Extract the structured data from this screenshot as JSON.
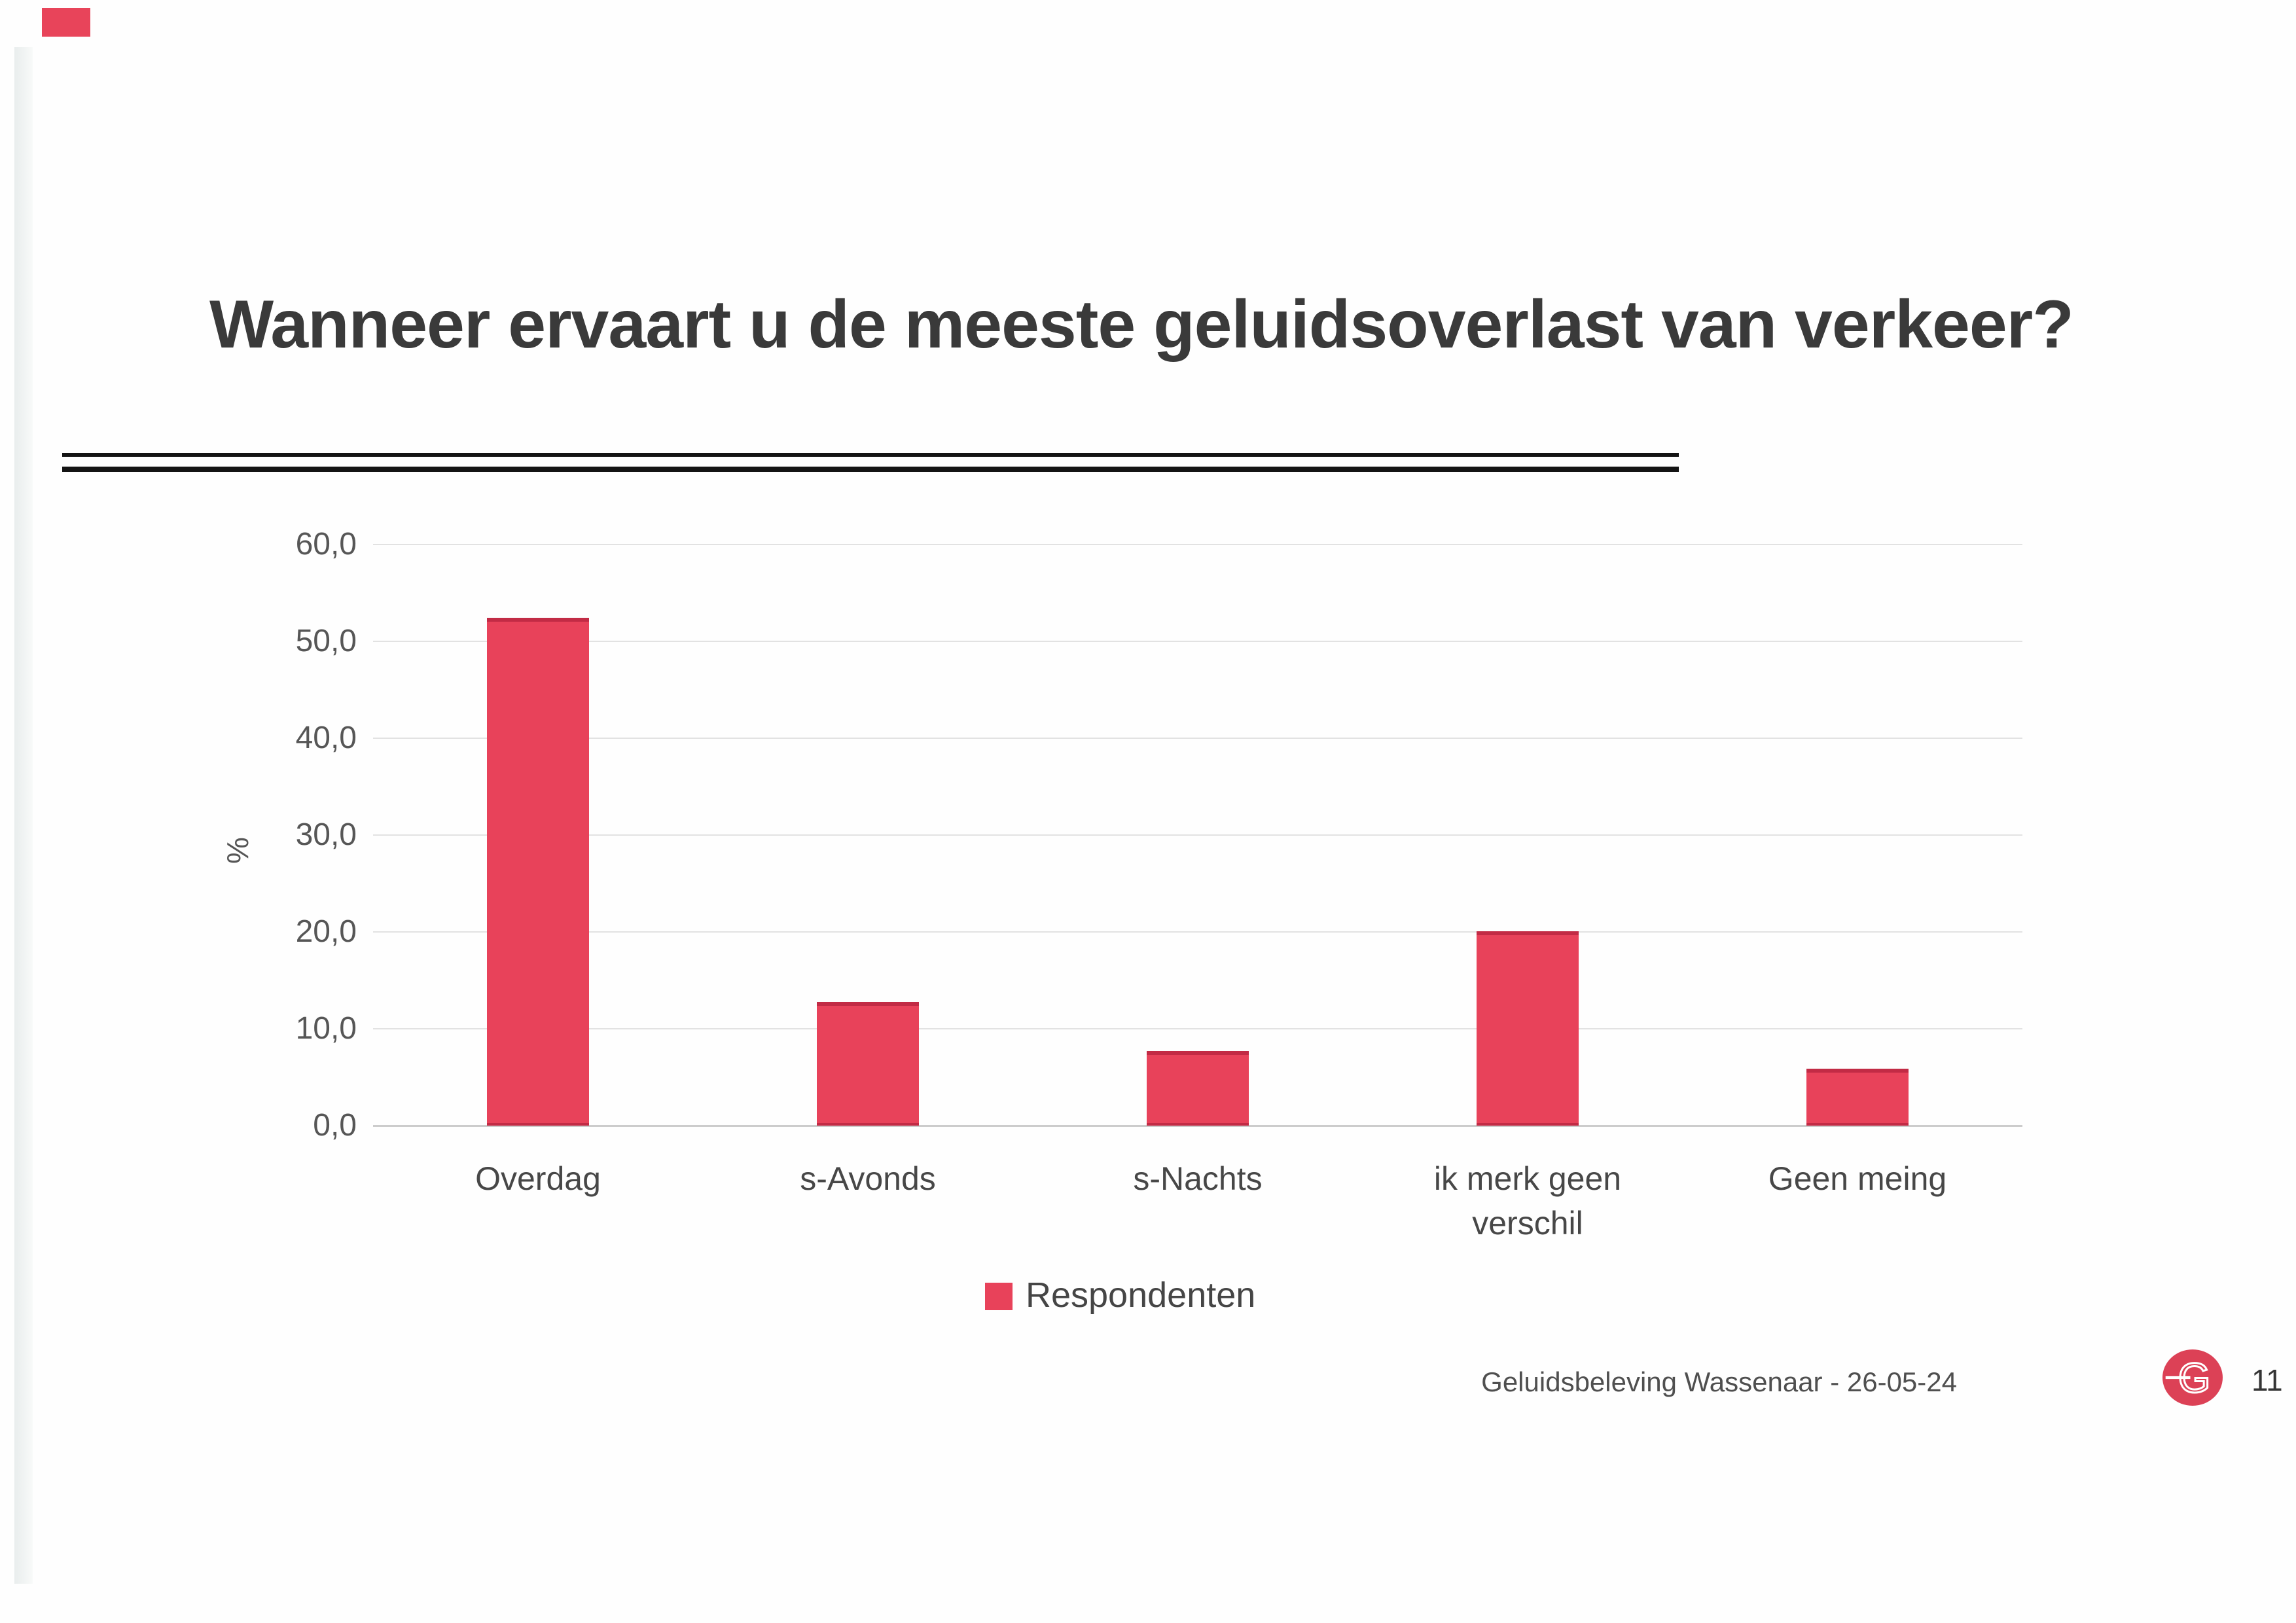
{
  "slide": {
    "title": "Wanneer ervaart u de meeste geluidsoverlast van verkeer?",
    "footer": {
      "source_text": "Geluidsbeleving Wassenaar - 26-05-24",
      "page_number": "11",
      "logo_letter": "G"
    }
  },
  "chart_data": {
    "type": "bar",
    "title": "Wanneer ervaart u de meeste geluidsoverlast van verkeer?",
    "categories": [
      "Overdag",
      "s-Avonds",
      "s-Nachts",
      "ik merk geen verschil",
      "Geen meing"
    ],
    "series": [
      {
        "name": "Respondenten",
        "color": "#e8425a",
        "values": [
          52.4,
          12.8,
          7.7,
          20.1,
          5.9
        ]
      }
    ],
    "xlabel": "",
    "ylabel": "%",
    "ylim": [
      0,
      60
    ],
    "y_ticks": {
      "values": [
        0,
        10,
        20,
        30,
        40,
        50,
        60
      ],
      "labels": [
        "0,0",
        "10,0",
        "20,0",
        "30,0",
        "40,0",
        "50,0",
        "60,0"
      ]
    },
    "grid": true,
    "legend_position": "bottom",
    "accent_colors": {
      "bar_fill": "#e8425a",
      "bar_edge": "#c22b45"
    }
  }
}
